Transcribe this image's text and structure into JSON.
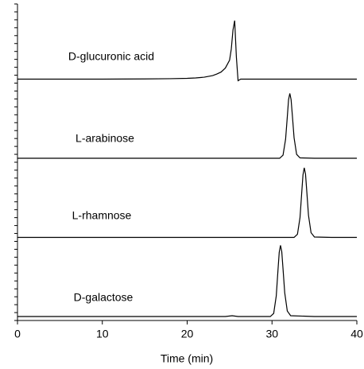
{
  "chart_data": [
    {
      "type": "line",
      "annotation": "D-glucuronic acid",
      "color": "#000000",
      "x": [
        0,
        5,
        10,
        15,
        18,
        20,
        21,
        22,
        23,
        23.5,
        24,
        24.5,
        25,
        25.2,
        25.4,
        25.6,
        25.8,
        26,
        26.3,
        27,
        30,
        35,
        40
      ],
      "values": [
        0,
        0,
        0,
        0.3,
        0.6,
        1,
        1.5,
        2.5,
        4.5,
        6.5,
        9,
        14,
        24,
        38,
        62,
        74,
        28,
        -2,
        0,
        0,
        0,
        0,
        0
      ],
      "xlim": [
        0,
        40
      ],
      "ylim": [
        -5,
        95
      ]
    },
    {
      "type": "line",
      "annotation": "L-arabinose",
      "color": "#000000",
      "x": [
        0,
        10,
        20,
        30,
        30.9,
        31.3,
        31.6,
        31.8,
        31.95,
        32.1,
        32.25,
        32.4,
        32.6,
        32.9,
        33.3,
        35,
        40
      ],
      "values": [
        0,
        0,
        0,
        0,
        0,
        4,
        24,
        52,
        74,
        82,
        74,
        54,
        26,
        5,
        0.5,
        0,
        0
      ],
      "xlim": [
        0,
        40
      ],
      "ylim": [
        -5,
        95
      ]
    },
    {
      "type": "line",
      "annotation": "L-rhamnose",
      "color": "#000000",
      "x": [
        0,
        10,
        20,
        30,
        32.6,
        33,
        33.3,
        33.5,
        33.65,
        33.8,
        33.95,
        34.1,
        34.3,
        34.6,
        35,
        37,
        40
      ],
      "values": [
        0,
        0,
        0,
        0,
        0,
        4,
        25,
        56,
        79,
        88,
        80,
        58,
        28,
        6,
        0.5,
        0,
        0
      ],
      "xlim": [
        0,
        40
      ],
      "ylim": [
        -5,
        95
      ]
    },
    {
      "type": "line",
      "annotation": "D-galactose",
      "color": "#000000",
      "x": [
        0,
        10,
        20,
        24.5,
        25.3,
        26,
        29.5,
        29.8,
        30.2,
        30.5,
        30.7,
        30.85,
        31,
        31.15,
        31.3,
        31.5,
        31.8,
        32.2,
        35,
        40
      ],
      "values": [
        0,
        0,
        0,
        0,
        1,
        0,
        0,
        0,
        4,
        26,
        58,
        81,
        90,
        82,
        60,
        30,
        7,
        1,
        0,
        0
      ],
      "xlim": [
        0,
        40
      ],
      "ylim": [
        -5,
        95
      ],
      "xticks": [
        0,
        10,
        20,
        30,
        40
      ],
      "xlabel": "Time (min)"
    }
  ]
}
